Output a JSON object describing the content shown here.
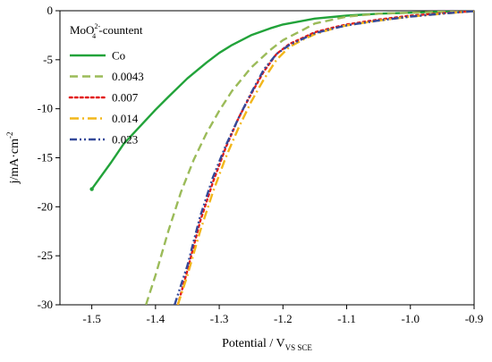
{
  "chart_data": {
    "type": "line",
    "title": "",
    "xlabel_main": "Potential / V",
    "xlabel_sub": "VS SCE",
    "ylabel_main": "j/mA·cm",
    "ylabel_sup": "-2",
    "xlim": [
      -1.55,
      -0.9
    ],
    "ylim": [
      -30,
      0
    ],
    "xticks": [
      "-1.5",
      "-1.4",
      "-1.3",
      "-1.2",
      "-1.1",
      "-1.0",
      "-0.9"
    ],
    "yticks": [
      "0",
      "-5",
      "-10",
      "-15",
      "-20",
      "-25",
      "-30"
    ],
    "grid": false,
    "legend": {
      "title_main": "MoO",
      "title_sub": "4",
      "title_sup": "2-",
      "title_rest": " -countent",
      "placement": "top-left"
    },
    "series": [
      {
        "name": "Co",
        "color": "#22a33a",
        "style": "solid",
        "x": [
          -1.5,
          -1.47,
          -1.45,
          -1.42,
          -1.4,
          -1.38,
          -1.35,
          -1.32,
          -1.3,
          -1.28,
          -1.25,
          -1.22,
          -1.2,
          -1.15,
          -1.1,
          -1.05,
          -1.0,
          -0.95,
          -0.9
        ],
        "y": [
          -18.2,
          -15.5,
          -13.6,
          -11.5,
          -10.1,
          -8.8,
          -6.9,
          -5.3,
          -4.3,
          -3.5,
          -2.5,
          -1.8,
          -1.4,
          -0.8,
          -0.5,
          -0.3,
          -0.2,
          -0.1,
          -0.05
        ]
      },
      {
        "name": "0.0043",
        "color": "#9bbb59",
        "style": "dashed",
        "x": [
          -1.415,
          -1.4,
          -1.38,
          -1.36,
          -1.34,
          -1.32,
          -1.3,
          -1.28,
          -1.25,
          -1.22,
          -1.2,
          -1.17,
          -1.15,
          -1.1,
          -1.05,
          -1.0,
          -0.95,
          -0.9
        ],
        "y": [
          -30,
          -27,
          -22.5,
          -18.5,
          -15.2,
          -12.5,
          -10.2,
          -8.2,
          -5.8,
          -4.0,
          -3.0,
          -2.0,
          -1.3,
          -0.6,
          -0.3,
          -0.2,
          -0.1,
          -0.05
        ]
      },
      {
        "name": "0.007",
        "color": "#e21a1a",
        "style": "dotted",
        "x": [
          -1.365,
          -1.35,
          -1.33,
          -1.31,
          -1.29,
          -1.27,
          -1.25,
          -1.23,
          -1.21,
          -1.19,
          -1.17,
          -1.15,
          -1.12,
          -1.1,
          -1.05,
          -1.0,
          -0.95,
          -0.9
        ],
        "y": [
          -30,
          -26.5,
          -21.5,
          -17.5,
          -14.0,
          -11.0,
          -8.5,
          -6.2,
          -4.4,
          -3.4,
          -2.8,
          -2.2,
          -1.7,
          -1.4,
          -0.9,
          -0.5,
          -0.25,
          -0.05
        ]
      },
      {
        "name": "0.014",
        "color": "#f2b71b",
        "style": "dashdot",
        "x": [
          -1.365,
          -1.35,
          -1.33,
          -1.31,
          -1.29,
          -1.27,
          -1.25,
          -1.23,
          -1.21,
          -1.19,
          -1.17,
          -1.15,
          -1.12,
          -1.1,
          -1.05,
          -1.0,
          -0.95,
          -0.9
        ],
        "y": [
          -30,
          -27.0,
          -22.5,
          -18.5,
          -15.0,
          -12.0,
          -9.3,
          -7.0,
          -5.0,
          -3.7,
          -3.0,
          -2.4,
          -1.8,
          -1.5,
          -1.0,
          -0.6,
          -0.3,
          -0.05
        ]
      },
      {
        "name": "0.023",
        "color": "#34499a",
        "style": "dashdotdot",
        "x": [
          -1.37,
          -1.35,
          -1.33,
          -1.31,
          -1.29,
          -1.27,
          -1.25,
          -1.23,
          -1.21,
          -1.19,
          -1.17,
          -1.15,
          -1.12,
          -1.1,
          -1.05,
          -1.0,
          -0.95,
          -0.9
        ],
        "y": [
          -30,
          -26.0,
          -21.0,
          -17.0,
          -13.8,
          -11.0,
          -8.4,
          -6.0,
          -4.4,
          -3.5,
          -2.9,
          -2.3,
          -1.8,
          -1.5,
          -1.0,
          -0.6,
          -0.3,
          -0.05
        ]
      }
    ]
  }
}
